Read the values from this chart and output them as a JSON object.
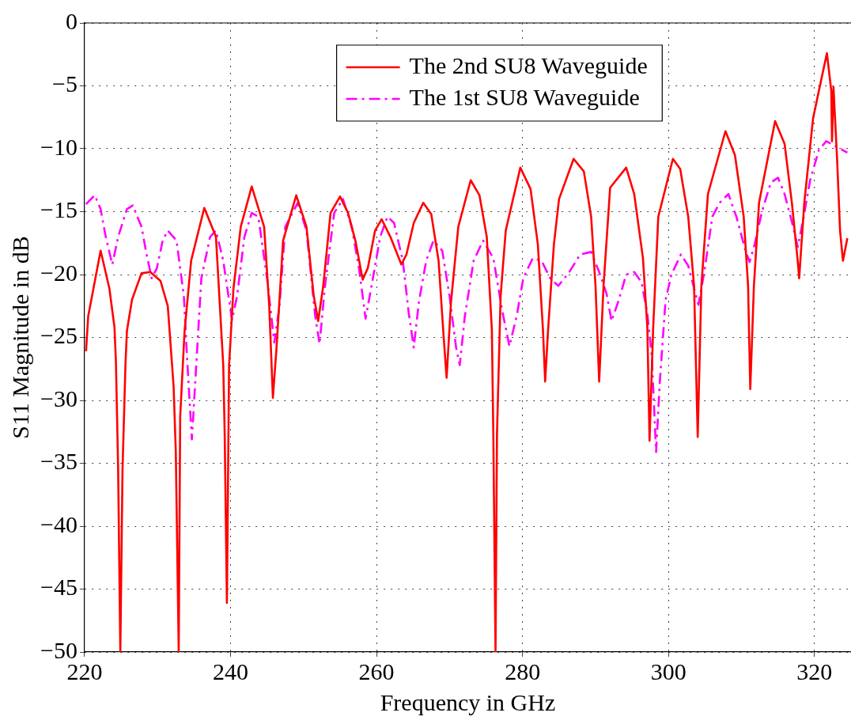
{
  "chart_data": {
    "type": "line",
    "xlabel": "Frequency in GHz",
    "ylabel": "S11 Magnitude in dB",
    "xlim": [
      220,
      325
    ],
    "xticks": [
      220,
      240,
      260,
      280,
      300,
      320
    ],
    "ylim": [
      -50,
      0
    ],
    "yticks": [
      -50,
      -45,
      -40,
      -35,
      -30,
      -25,
      -20,
      -15,
      -10,
      -5,
      0
    ],
    "grid": true,
    "legend": "top",
    "marker": "none",
    "series": [
      {
        "name": "The 2nd SU8 Waveguide",
        "color": "#ff0000",
        "line_style": "solid",
        "x": [
          220.2,
          220.5,
          222.2,
          223.4,
          224.1,
          224.3,
          224.6,
          224.9,
          225.2,
          225.6,
          225.8,
          226.5,
          227.8,
          229,
          230.4,
          231.4,
          232.2,
          232.5,
          232.9,
          233.1,
          233.7,
          234.6,
          236.4,
          238,
          239,
          239.2,
          239.5,
          239.8,
          240.4,
          241.4,
          242.9,
          244.6,
          245.3,
          245.8,
          246.3,
          247.2,
          249,
          250.4,
          251.4,
          252,
          252.7,
          253.7,
          255,
          256.1,
          257.1,
          258.1,
          258.8,
          259.8,
          260.7,
          261.9,
          263.4,
          264.1,
          265.1,
          266.4,
          267.5,
          268.5,
          269.2,
          269.6,
          270.2,
          271.2,
          272.9,
          274.1,
          275.1,
          275.8,
          276,
          276.3,
          276.5,
          277,
          277.7,
          279.7,
          281.1,
          282.1,
          282.8,
          283.1,
          283.5,
          284.3,
          285,
          287,
          288.4,
          289.4,
          290,
          290.5,
          291.1,
          292,
          294.2,
          295.3,
          296.5,
          297.1,
          297.4,
          297.9,
          298.6,
          300.6,
          301.6,
          302.7,
          303.5,
          304,
          304.5,
          305.4,
          307.8,
          309.1,
          310.3,
          310.9,
          311.2,
          311.7,
          312.4,
          314.6,
          315.9,
          316.9,
          317.7,
          317.9,
          318.6,
          319.8,
          321,
          321.7,
          322.3,
          322.4,
          322.6,
          323.1,
          323.5,
          323.9,
          324.5
        ],
        "values": [
          -26.1,
          -23.3,
          -18.1,
          -21.1,
          -24.2,
          -27,
          -35.5,
          -50,
          -35.5,
          -27.2,
          -24.5,
          -22,
          -19.9,
          -19.8,
          -20.5,
          -22.5,
          -28.9,
          -34.1,
          -50,
          -31.3,
          -24.5,
          -18.9,
          -14.7,
          -17,
          -27.2,
          -32.7,
          -46.1,
          -27.2,
          -21.1,
          -16.2,
          -13,
          -16.2,
          -22.5,
          -29.8,
          -25.8,
          -17.3,
          -13.7,
          -16.2,
          -21.7,
          -23.7,
          -20.9,
          -15.1,
          -13.8,
          -15.1,
          -17.3,
          -20.4,
          -19.5,
          -16.5,
          -15.6,
          -17,
          -19.2,
          -18.4,
          -15.9,
          -14.3,
          -15.2,
          -18.9,
          -25,
          -28.2,
          -22.2,
          -16.2,
          -12.5,
          -13.7,
          -17,
          -24.4,
          -32.7,
          -50,
          -32.7,
          -21.7,
          -16.5,
          -11.5,
          -13.2,
          -17.6,
          -24.4,
          -28.5,
          -24.4,
          -17.6,
          -14,
          -10.8,
          -11.8,
          -15.4,
          -20.9,
          -28.5,
          -20.9,
          -13.1,
          -11.5,
          -13.6,
          -18.7,
          -24.2,
          -33.2,
          -24.2,
          -15.4,
          -10.8,
          -11.6,
          -15.4,
          -20.9,
          -32.9,
          -20.9,
          -13.6,
          -8.6,
          -10.5,
          -15.4,
          -20.9,
          -29.1,
          -20.9,
          -14.3,
          -7.8,
          -9.6,
          -14.3,
          -18.9,
          -20.3,
          -14.3,
          -7.6,
          -4.3,
          -2.4,
          -5.4,
          -9.4,
          -5.1,
          -10.9,
          -16.5,
          -18.9,
          -17.1
        ]
      },
      {
        "name": "The 1st SU8 Waveguide",
        "color": "#ff00ff",
        "line_style": "dashed",
        "x": [
          220.2,
          221.4,
          222.2,
          222.9,
          223.8,
          224.6,
          225.8,
          226.6,
          227.8,
          228.5,
          229.2,
          229.9,
          230.7,
          231.4,
          232.6,
          233.6,
          234.1,
          234.7,
          235.3,
          236,
          237.2,
          238,
          239,
          240.2,
          240.9,
          241.9,
          242.9,
          243.8,
          245,
          246,
          246.7,
          247.5,
          249.2,
          250.4,
          251.6,
          252.2,
          252.9,
          254.2,
          255.4,
          256.6,
          257.6,
          258.5,
          259.5,
          260.5,
          261.5,
          262.4,
          263.6,
          264.4,
          265.1,
          265.8,
          266.8,
          267.8,
          269,
          270,
          270.9,
          271.4,
          272.1,
          273.3,
          274.6,
          276,
          277.2,
          278.2,
          279.2,
          280.1,
          281.4,
          282.6,
          283.8,
          284.9,
          286.4,
          287.9,
          289.4,
          290.5,
          291.5,
          292.2,
          293.2,
          294.2,
          295.3,
          296.3,
          297.1,
          297.7,
          298.3,
          298.8,
          299.6,
          300.4,
          301.7,
          302.7,
          303.5,
          304.1,
          304.9,
          306,
          307,
          308.2,
          309.3,
          310.5,
          311.1,
          311.8,
          312.8,
          314,
          315,
          315.9,
          316.9,
          317.7,
          318.4,
          319.4,
          320.6,
          321.6,
          322.9,
          324.5
        ],
        "values": [
          -14.4,
          -13.7,
          -14.8,
          -17,
          -19.2,
          -17,
          -14.8,
          -14.5,
          -16.2,
          -18.4,
          -20.3,
          -19.5,
          -17.3,
          -16.5,
          -17.3,
          -21.7,
          -27.2,
          -33.1,
          -27.2,
          -20.3,
          -17,
          -16.5,
          -18.9,
          -23.6,
          -21.7,
          -17,
          -15.1,
          -15.4,
          -20.3,
          -25.4,
          -22.5,
          -16.2,
          -14.3,
          -16.5,
          -23.3,
          -25.5,
          -21.1,
          -15.1,
          -14,
          -16.2,
          -19.5,
          -23.5,
          -20.3,
          -17,
          -15.4,
          -15.9,
          -18.9,
          -23,
          -25.8,
          -22.2,
          -18.9,
          -17.3,
          -18.1,
          -21.7,
          -25.8,
          -27.2,
          -23.3,
          -18.9,
          -17.3,
          -18.7,
          -22.8,
          -25.7,
          -23.3,
          -20.3,
          -18.7,
          -18.9,
          -20.3,
          -20.9,
          -19.8,
          -18.4,
          -18.2,
          -19.8,
          -21.5,
          -23.7,
          -22,
          -20,
          -19.8,
          -20.6,
          -23.1,
          -26.4,
          -34.1,
          -28.6,
          -22,
          -20,
          -18.4,
          -19.3,
          -21.1,
          -22.4,
          -19.8,
          -15.4,
          -14.3,
          -13.6,
          -15.4,
          -18,
          -19,
          -17.6,
          -15,
          -12.7,
          -12.3,
          -13.6,
          -15.8,
          -17.8,
          -15.8,
          -12.5,
          -10.1,
          -9.4,
          -9.8,
          -10.3
        ]
      }
    ]
  }
}
